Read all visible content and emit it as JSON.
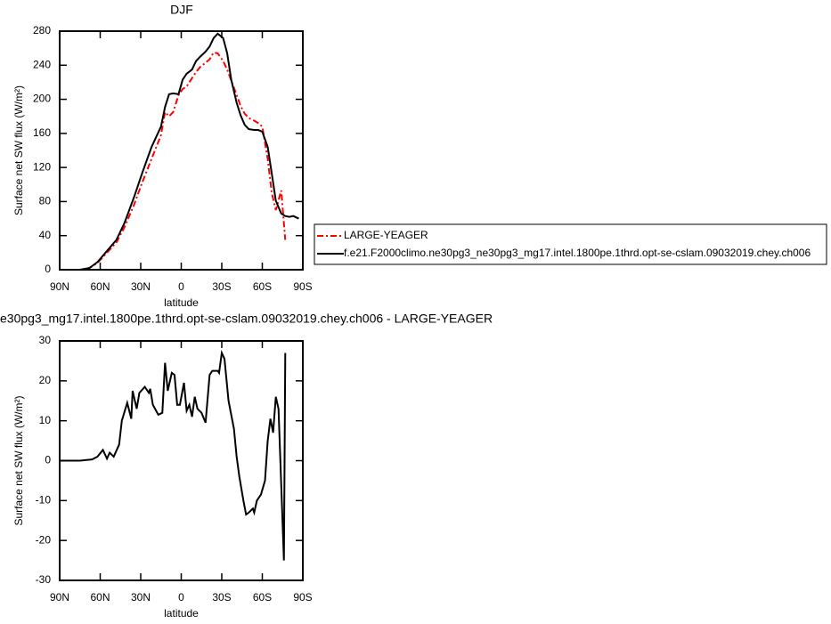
{
  "chart_data": [
    {
      "type": "line",
      "title": "DJF",
      "xlabel": "latitude",
      "ylabel": "Surface net SW flux (W/m²)",
      "x": [
        90,
        75,
        68,
        62,
        55,
        48,
        42,
        35,
        29,
        22,
        15,
        12,
        9,
        6,
        2,
        -1,
        -4,
        -8,
        -11,
        -14,
        -18,
        -21,
        -24,
        -27,
        -31,
        -34,
        -37,
        -41,
        -44,
        -47,
        -50,
        -54,
        -57,
        -60,
        -64,
        -67,
        -70,
        -74,
        -77,
        -80,
        -83,
        -87
      ],
      "series": [
        {
          "name": "LARGE-YEAGER",
          "color": "#ff0000",
          "line_style": "dash",
          "values": [
            0,
            0,
            2,
            8,
            20,
            32,
            50,
            76,
            102,
            130,
            158,
            185,
            180,
            185,
            205,
            212,
            215,
            225,
            232,
            238,
            243,
            247,
            255,
            254,
            245,
            235,
            222,
            205,
            192,
            183,
            178,
            175,
            172,
            168,
            130,
            90,
            70,
            93,
            35,
            null,
            null,
            null
          ]
        },
        {
          "name": "f.e21.F2000climo.ne30pg3_ne30pg3_mg17.intel.1800pe.1thrd.opt-se-cslam.09032019.chey.ch006",
          "color": "#000000",
          "line_style": "solid",
          "values": [
            0,
            0,
            2,
            9,
            22,
            35,
            55,
            85,
            113,
            144,
            168,
            191,
            206,
            207,
            206,
            223,
            230,
            235,
            245,
            250,
            256,
            262,
            272,
            277,
            272,
            254,
            223,
            196,
            181,
            170,
            165,
            164,
            164,
            162,
            144,
            113,
            81,
            66,
            63,
            62,
            63,
            60
          ]
        }
      ],
      "xlim": [
        90,
        -90
      ],
      "xticks": [
        {
          "value": 90,
          "label": "90N"
        },
        {
          "value": 60,
          "label": "60N"
        },
        {
          "value": 30,
          "label": "30N"
        },
        0,
        {
          "value": -30,
          "label": "30S"
        },
        {
          "value": -60,
          "label": "60S"
        },
        {
          "value": -90,
          "label": "90S"
        }
      ],
      "ylim": [
        0,
        280
      ],
      "yticks": [
        0,
        40,
        80,
        120,
        160,
        200,
        240,
        280
      ],
      "legend": "right"
    },
    {
      "type": "line",
      "title": "e30pg3_mg17.intel.1800pe.1thrd.opt-se-cslam.09032019.chey.ch006 - LARGE-YEAGER",
      "xlabel": "latitude",
      "ylabel": "Surface net SW flux (W/m²)",
      "x": [
        90,
        75,
        66,
        62,
        58,
        55,
        53,
        50,
        46,
        44,
        40,
        37,
        36,
        33,
        31,
        27,
        24,
        23,
        21,
        17,
        14,
        12,
        10,
        7,
        5,
        3,
        1,
        -2,
        -4,
        -6,
        -8,
        -10,
        -12,
        -15,
        -18,
        -21,
        -23,
        -27,
        -28,
        -30,
        -32,
        -35,
        -39,
        -41,
        -43,
        -46,
        -48,
        -50,
        -53,
        -54,
        -56,
        -59,
        -62,
        -64,
        -66,
        -68,
        -70,
        -72,
        -76,
        -77
      ],
      "series": [
        {
          "color": "#000000",
          "line_style": "solid",
          "values": [
            0,
            0,
            0.3,
            1,
            2.7,
            0.5,
            2,
            1,
            4,
            10,
            14.5,
            10.5,
            17.5,
            13,
            17,
            18.5,
            17,
            18,
            14,
            11.5,
            12,
            24.5,
            17.5,
            22,
            21.5,
            14,
            14,
            19.5,
            12.5,
            14,
            11,
            16,
            13,
            12,
            9.5,
            21.5,
            22.5,
            22.5,
            22,
            27,
            25.5,
            15,
            8,
            1,
            -4,
            -10,
            -13.5,
            -13,
            -12,
            -13,
            -10,
            -8.5,
            -5,
            5,
            10.5,
            7,
            16,
            13,
            -25,
            27
          ]
        }
      ],
      "xlim": [
        90,
        -90
      ],
      "xticks": [
        {
          "value": 90,
          "label": "90N"
        },
        {
          "value": 60,
          "label": "60N"
        },
        {
          "value": 30,
          "label": "30N"
        },
        0,
        {
          "value": -30,
          "label": "30S"
        },
        {
          "value": -60,
          "label": "60S"
        },
        {
          "value": -90,
          "label": "90S"
        }
      ],
      "ylim": [
        -30,
        30
      ],
      "yticks": [
        -30,
        -20,
        -10,
        0,
        10,
        20,
        30
      ]
    }
  ]
}
